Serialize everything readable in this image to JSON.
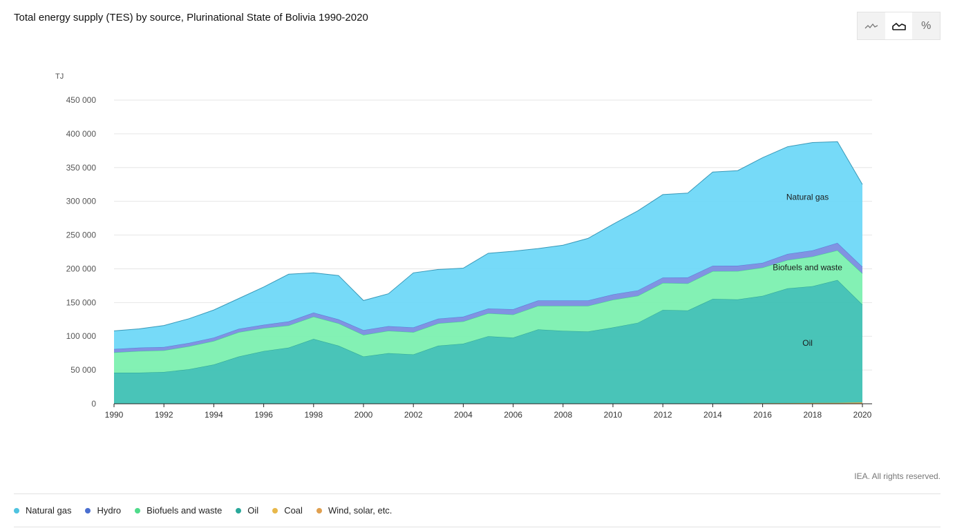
{
  "title": "Total energy supply (TES) by source, Plurinational State of Bolivia 1990-2020",
  "credit": "IEA. All rights reserved.",
  "toggle_buttons": [
    {
      "icon": "line-chart-icon",
      "active": false
    },
    {
      "icon": "area-chart-icon",
      "active": true
    },
    {
      "icon": "percent-icon",
      "label": "%",
      "active": false
    }
  ],
  "legend": [
    {
      "label": "Natural gas",
      "color": "#4fc3e0"
    },
    {
      "label": "Hydro",
      "color": "#4a6fd0"
    },
    {
      "label": "Biofuels and waste",
      "color": "#4fdb8a"
    },
    {
      "label": "Oil",
      "color": "#2aa89a"
    },
    {
      "label": "Coal",
      "color": "#e8b84a"
    },
    {
      "label": "Wind, solar, etc.",
      "color": "#e0a050"
    }
  ],
  "chart_data": {
    "type": "area",
    "stacked": true,
    "ylabel": "TJ",
    "ylim": [
      0,
      450000
    ],
    "yticks": [
      0,
      50000,
      100000,
      150000,
      200000,
      250000,
      300000,
      350000,
      400000,
      450000
    ],
    "ytick_labels": [
      "0",
      "50 000",
      "100 000",
      "150 000",
      "200 000",
      "250 000",
      "300 000",
      "350 000",
      "400 000",
      "450 000"
    ],
    "xlim": [
      1990,
      2020
    ],
    "xticks": [
      1990,
      1992,
      1994,
      1996,
      1998,
      2000,
      2002,
      2004,
      2006,
      2008,
      2010,
      2012,
      2014,
      2016,
      2018,
      2020
    ],
    "grid": true,
    "x": [
      1990,
      1991,
      1992,
      1993,
      1994,
      1995,
      1996,
      1997,
      1998,
      1999,
      2000,
      2001,
      2002,
      2003,
      2004,
      2005,
      2006,
      2007,
      2008,
      2009,
      2010,
      2011,
      2012,
      2013,
      2014,
      2015,
      2016,
      2017,
      2018,
      2019,
      2020
    ],
    "series": [
      {
        "name": "Wind, solar, etc.",
        "color": "#e0a050",
        "fill": "#e0a050",
        "values": [
          0,
          0,
          0,
          0,
          0,
          0,
          0,
          0,
          0,
          0,
          0,
          0,
          0,
          0,
          0,
          0,
          0,
          0,
          0,
          0,
          0,
          0,
          0,
          200,
          400,
          500,
          700,
          900,
          1100,
          1300,
          2000
        ]
      },
      {
        "name": "Coal",
        "color": "#e8b84a",
        "fill": "#e8b84a",
        "values": [
          0,
          0,
          0,
          0,
          0,
          0,
          0,
          0,
          0,
          0,
          0,
          0,
          0,
          0,
          0,
          0,
          0,
          0,
          0,
          0,
          0,
          0,
          0,
          0,
          0,
          0,
          0,
          0,
          0,
          0,
          0
        ]
      },
      {
        "name": "Oil",
        "color": "#2a9e92",
        "fill": "#3fc1b4",
        "label": "Oil",
        "values": [
          46000,
          46000,
          47000,
          51000,
          58000,
          70000,
          78000,
          83000,
          96000,
          86000,
          70000,
          75000,
          73000,
          86000,
          89000,
          100000,
          98000,
          110000,
          108000,
          107000,
          113000,
          120000,
          139000,
          138000,
          155000,
          154000,
          159000,
          170000,
          173000,
          182000,
          145000
        ]
      },
      {
        "name": "Biofuels and waste",
        "color": "#3fd18a",
        "fill": "#7cf0b0",
        "label": "Biofuels and waste",
        "values": [
          30000,
          32000,
          32000,
          34000,
          35000,
          36000,
          34000,
          33000,
          33000,
          33000,
          32000,
          33000,
          33000,
          33000,
          33000,
          34000,
          34000,
          35000,
          37000,
          38000,
          41000,
          40000,
          40000,
          40000,
          41000,
          42000,
          42000,
          42000,
          44000,
          44000,
          46000
        ]
      },
      {
        "name": "Hydro",
        "color": "#5a6ed0",
        "fill": "#7a8de0",
        "values": [
          5000,
          5000,
          5000,
          5000,
          5000,
          5000,
          5000,
          6000,
          6000,
          6000,
          7000,
          7000,
          7000,
          7000,
          7000,
          7000,
          8000,
          8000,
          8000,
          8000,
          8000,
          8000,
          8000,
          9000,
          8000,
          8000,
          7000,
          9000,
          9000,
          11000,
          10000
        ]
      },
      {
        "name": "Natural gas",
        "color": "#2a8fb0",
        "fill": "#6fd8f8",
        "label": "Natural gas",
        "values": [
          27000,
          28000,
          32000,
          36000,
          41000,
          45000,
          56000,
          70000,
          59000,
          65000,
          44000,
          48000,
          81000,
          73000,
          72000,
          82000,
          86000,
          77000,
          82000,
          92000,
          104000,
          118000,
          123000,
          125000,
          139000,
          141000,
          156000,
          159000,
          160000,
          150000,
          122000
        ]
      }
    ],
    "annotations": [
      {
        "text": "Natural gas",
        "x": 2017.8,
        "y": 302000
      },
      {
        "text": "Biofuels and waste",
        "x": 2017.8,
        "y": 198000
      },
      {
        "text": "Oil",
        "x": 2017.8,
        "y": 86000
      }
    ]
  }
}
